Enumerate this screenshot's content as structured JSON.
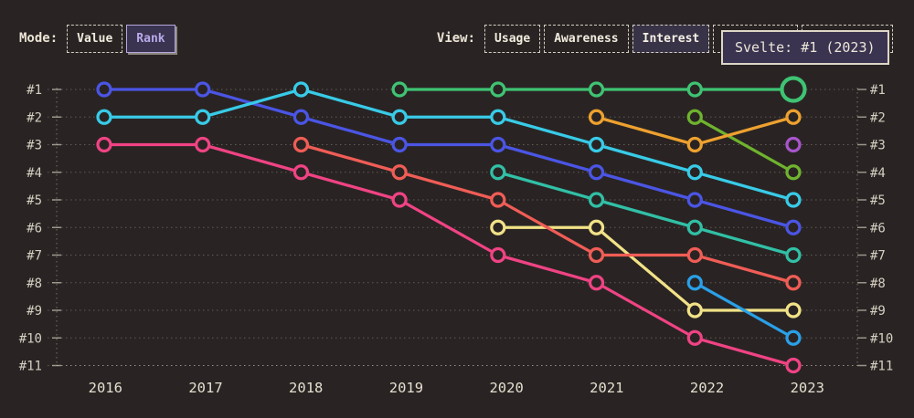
{
  "header": {
    "mode": {
      "label": "Mode:",
      "options": [
        {
          "label": "Value",
          "selected": false
        },
        {
          "label": "Rank",
          "selected": true
        }
      ]
    },
    "view": {
      "label": "View:",
      "options": [
        {
          "label": "Usage",
          "selected": false
        },
        {
          "label": "Awareness",
          "selected": false
        },
        {
          "label": "Interest",
          "selected": true
        },
        {
          "label": "Retention",
          "selected": false
        },
        {
          "label": "Positivity",
          "selected": false
        }
      ]
    }
  },
  "tooltip": {
    "text": "Svelte: #1 (2023)"
  },
  "colors": {
    "background": "#292423",
    "cream_text": "#e6decf",
    "axis_label": "#d5cec1",
    "grid": "rgba(214,207,193,0.32)",
    "axis_dotted": "rgba(214,207,193,0.45)",
    "tick": "rgba(214,207,193,0.65)",
    "selected_mode_text": "#b9a9ec",
    "selected_mode_border": "#b5a8de",
    "tooltip_bg": "#3b3450",
    "tooltip_border": "#ded6c6"
  },
  "chart_data": {
    "type": "line",
    "variant": "bump-rank",
    "x": [
      2016,
      2017,
      2018,
      2019,
      2020,
      2021,
      2022,
      2023
    ],
    "rank_labels": [
      "#1",
      "#2",
      "#3",
      "#4",
      "#5",
      "#6",
      "#7",
      "#8",
      "#9",
      "#10",
      "#11"
    ],
    "ylim": [
      1,
      11
    ],
    "grid": "dotted-horizontal",
    "legend": "none",
    "series": [
      {
        "name": "series-pink",
        "color": "#f04384",
        "points": [
          [
            2016,
            3
          ],
          [
            2017,
            3
          ],
          [
            2018,
            4
          ],
          [
            2019,
            5
          ],
          [
            2020,
            7
          ],
          [
            2021,
            8
          ],
          [
            2022,
            10
          ],
          [
            2023,
            11
          ]
        ]
      },
      {
        "name": "series-yellow",
        "color": "#f2e287",
        "points": [
          [
            2020,
            6
          ],
          [
            2021,
            6
          ],
          [
            2022,
            9
          ],
          [
            2023,
            9
          ]
        ]
      },
      {
        "name": "series-teal",
        "color": "#31c0a6",
        "points": [
          [
            2020,
            4
          ],
          [
            2021,
            5
          ],
          [
            2022,
            6
          ],
          [
            2023,
            7
          ]
        ]
      },
      {
        "name": "series-salmon",
        "color": "#f05d56",
        "points": [
          [
            2018,
            3
          ],
          [
            2019,
            4
          ],
          [
            2020,
            5
          ],
          [
            2021,
            7
          ],
          [
            2022,
            7
          ],
          [
            2023,
            8
          ]
        ]
      },
      {
        "name": "series-blue",
        "color": "#4b55e5",
        "points": [
          [
            2016,
            1
          ],
          [
            2017,
            1
          ],
          [
            2018,
            2
          ],
          [
            2019,
            3
          ],
          [
            2020,
            3
          ],
          [
            2021,
            4
          ],
          [
            2022,
            5
          ],
          [
            2023,
            6
          ]
        ]
      },
      {
        "name": "series-cyan",
        "color": "#38cbe8",
        "points": [
          [
            2016,
            2
          ],
          [
            2017,
            2
          ],
          [
            2018,
            1
          ],
          [
            2019,
            2
          ],
          [
            2020,
            2
          ],
          [
            2021,
            3
          ],
          [
            2022,
            4
          ],
          [
            2023,
            5
          ]
        ]
      },
      {
        "name": "series-lime",
        "color": "#6fb32e",
        "points": [
          [
            2022,
            2
          ],
          [
            2023,
            4
          ]
        ]
      },
      {
        "name": "series-orange",
        "color": "#eea12f",
        "points": [
          [
            2021,
            2
          ],
          [
            2022,
            3
          ],
          [
            2023,
            2
          ]
        ]
      },
      {
        "name": "series-azure",
        "color": "#2aa0e8",
        "points": [
          [
            2022,
            8
          ],
          [
            2023,
            10
          ]
        ]
      },
      {
        "name": "series-purple",
        "color": "#a855cc",
        "points": [
          [
            2023,
            3
          ]
        ]
      },
      {
        "name": "svelte",
        "color": "#3fc373",
        "points": [
          [
            2019,
            1
          ],
          [
            2020,
            1
          ],
          [
            2021,
            1
          ],
          [
            2022,
            1
          ],
          [
            2023,
            1
          ]
        ]
      }
    ],
    "highlight": {
      "series": "svelte",
      "year": 2023,
      "rank": 1,
      "tooltip": "Svelte: #1 (2023)"
    }
  }
}
